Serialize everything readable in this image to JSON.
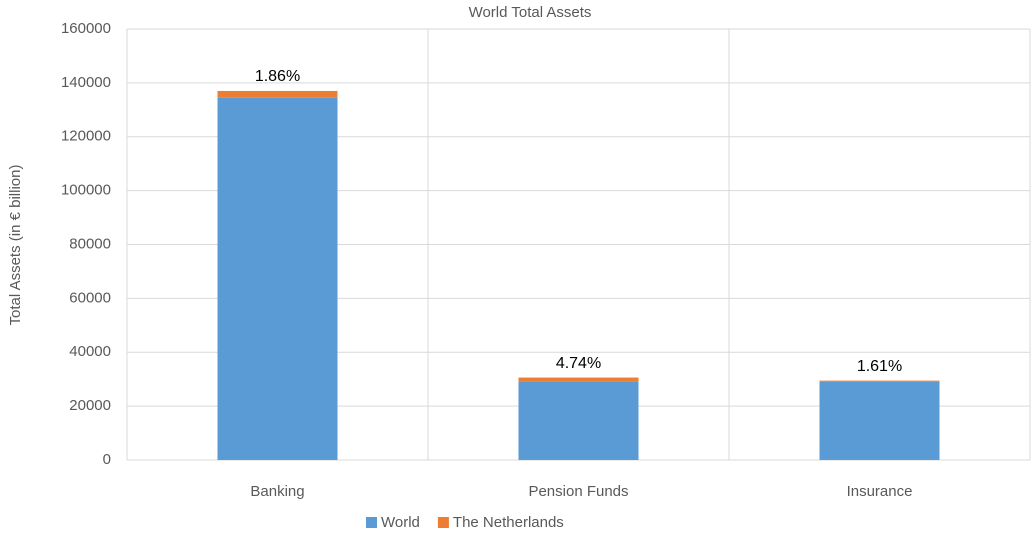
{
  "chart_data": {
    "type": "stacked_bar",
    "title": "World Total Assets",
    "y_label": "Total Assets (in € billion)",
    "categories": [
      "Banking",
      "Pension Funds",
      "Insurance"
    ],
    "series": [
      {
        "name": "World",
        "color": "#5b9bd5",
        "values": [
          134500,
          29200,
          29000
        ]
      },
      {
        "name": "The Netherlands",
        "color": "#ed7d31",
        "values": [
          2500,
          1400,
          470
        ]
      }
    ],
    "annotations": [
      "1.86%",
      "4.74%",
      "1.61%"
    ],
    "ylim": [
      0,
      160000
    ],
    "yticks": [
      0,
      20000,
      40000,
      60000,
      80000,
      100000,
      120000,
      140000,
      160000
    ],
    "grid": true,
    "legend": "bottom"
  }
}
